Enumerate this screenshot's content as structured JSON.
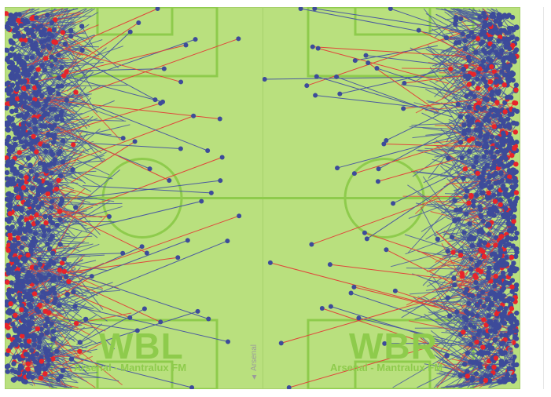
{
  "left_panel": {
    "team_code": "WBL",
    "credit": "Arsenal - Mantralux FM",
    "side_label": "▲ Arsenal"
  },
  "right_panel": {
    "team_code": "WBR",
    "credit": "Arsenal - Mantralux FM",
    "side_label": "▲ Arsenal"
  },
  "colors": {
    "pitch": "#b9e07e",
    "lines": "#8ecb4c",
    "pass_complete": "#4a5aa0",
    "pass_failed": "#e0453a",
    "dot_complete": "#3d4b9a",
    "dot_failed": "#e8242a"
  }
}
